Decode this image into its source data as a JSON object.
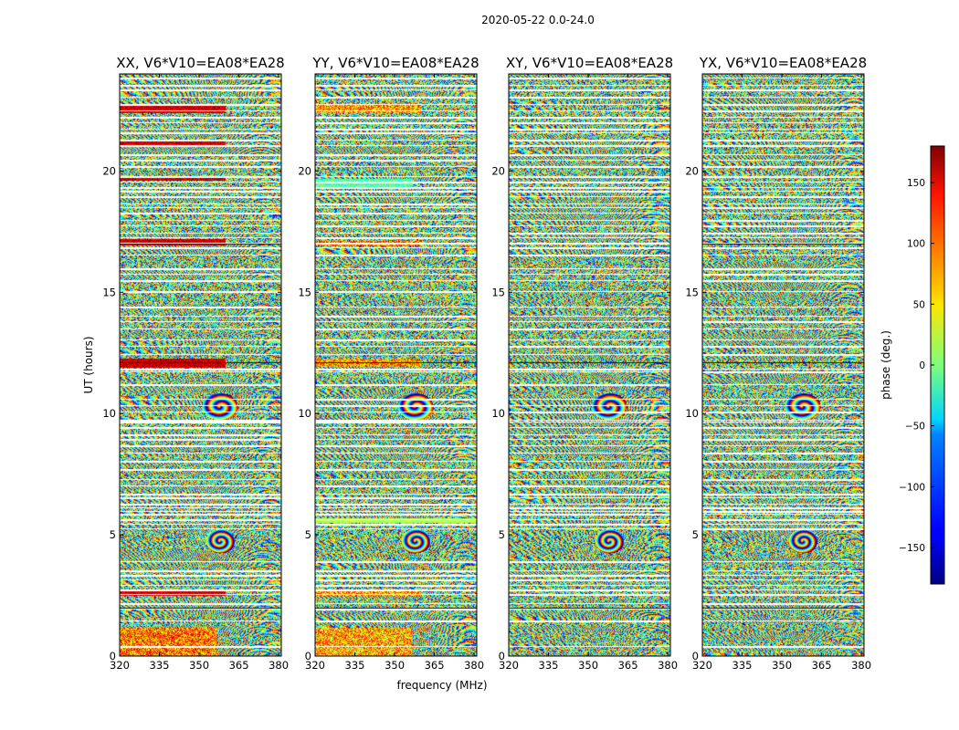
{
  "chart_data": {
    "type": "heatmap",
    "suptitle": "2020-05-22 0.0-24.0",
    "xlabel": "frequency (MHz)",
    "ylabel": "UT (hours)",
    "xlim": [
      320,
      381
    ],
    "ylim": [
      0,
      24
    ],
    "xticks": [
      "320",
      "335",
      "350",
      "365",
      "380"
    ],
    "yticks": [
      "0",
      "5",
      "10",
      "15",
      "20"
    ],
    "panels": [
      {
        "title": "XX, V6*V10=EA08*EA28",
        "style": "warm"
      },
      {
        "title": "YY, V6*V10=EA08*EA28",
        "style": "bright"
      },
      {
        "title": "XY, V6*V10=EA08*EA28",
        "style": "mixed"
      },
      {
        "title": "YX, V6*V10=EA08*EA28",
        "style": "mixed"
      }
    ],
    "colorbar": {
      "label": "phase (deg.)",
      "range": [
        -180,
        180
      ],
      "ticks": [
        "150",
        "100",
        "50",
        "0",
        "−50",
        "−100",
        "−150"
      ],
      "colormap": "jet"
    },
    "gaps_ut": [
      0.4,
      1.45,
      1.95,
      2.2,
      2.55,
      2.75,
      2.95,
      3.15,
      3.35,
      3.55,
      3.9,
      5.25,
      5.45,
      5.65,
      5.85,
      6.0,
      6.15,
      6.3,
      6.55,
      6.7,
      7.05,
      7.3,
      7.7,
      8.05,
      8.4,
      8.7,
      8.95,
      9.15,
      9.45,
      9.65,
      9.75,
      10.1,
      10.35,
      10.6,
      11.2,
      11.75,
      11.85,
      12.45,
      12.8,
      13.05,
      13.5,
      13.8,
      14.05,
      14.4,
      15.05,
      15.5,
      15.75,
      16.0,
      16.55,
      16.85,
      17.05,
      17.25,
      17.45,
      17.75,
      18.0,
      18.3,
      18.5,
      18.65,
      18.95,
      19.2,
      19.35,
      19.55,
      19.8,
      20.2,
      20.45,
      20.7,
      21.05,
      21.3,
      21.6,
      21.75,
      22.0,
      22.25,
      22.5,
      22.75,
      23.05,
      23.35,
      23.55,
      23.85
    ]
  }
}
